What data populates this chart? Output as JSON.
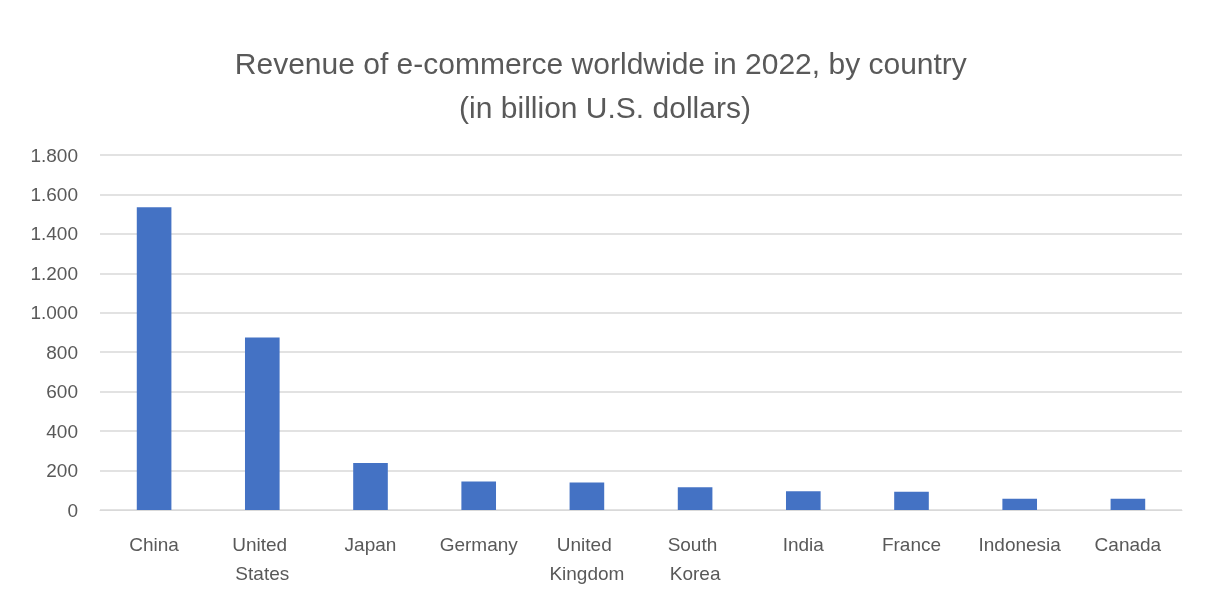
{
  "chart_data": {
    "type": "bar",
    "title": "Revenue of e-commerce worldwide in 2022, by country (in billion U.S. dollars)",
    "categories": [
      "China",
      "United States",
      "Japan",
      "Germany",
      "United Kingdom",
      "South Korea",
      "India",
      "France",
      "Indonesia",
      "Canada"
    ],
    "values": [
      1535,
      875,
      238,
      145,
      140,
      115,
      95,
      92,
      57,
      57
    ],
    "color": "#4472c4",
    "ylim": [
      0,
      1800
    ],
    "yticks": [
      0,
      200,
      400,
      600,
      800,
      {
        "value": 1000,
        "label": "1.000"
      },
      {
        "value": 1200,
        "label": "1.200"
      },
      {
        "value": 1400,
        "label": "1.400"
      },
      {
        "value": 1600,
        "label": "1.600"
      },
      {
        "value": 1800,
        "label": "1.800"
      }
    ],
    "grid": "y"
  }
}
